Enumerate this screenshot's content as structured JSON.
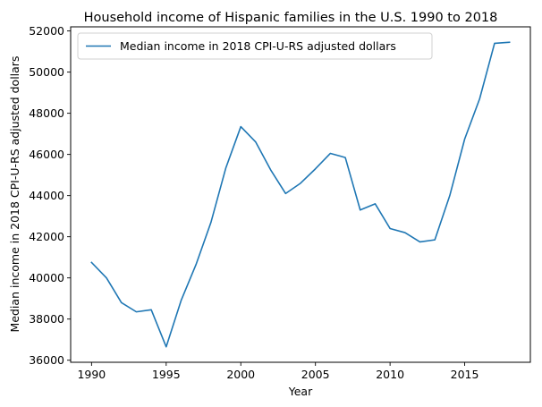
{
  "chart_data": {
    "type": "line",
    "title": "Household income of Hispanic families in the U.S. 1990 to 2018",
    "xlabel": "Year",
    "ylabel": "Median income in 2018 CPI-U-RS adjusted dollars",
    "xlim": [
      1988.6,
      2019.4
    ],
    "ylim": [
      35900,
      52200
    ],
    "xticks": [
      1990,
      1995,
      2000,
      2005,
      2010,
      2015
    ],
    "yticks": [
      36000,
      38000,
      40000,
      42000,
      44000,
      46000,
      48000,
      50000,
      52000
    ],
    "grid": false,
    "legend": {
      "position": "upper-left"
    },
    "series": [
      {
        "name": "Median income in 2018 CPI-U-RS adjusted dollars",
        "color": "#1f77b4",
        "x": [
          1990,
          1991,
          1992,
          1993,
          1994,
          1995,
          1996,
          1997,
          1998,
          1999,
          2000,
          2001,
          2002,
          2003,
          2004,
          2005,
          2006,
          2007,
          2008,
          2009,
          2010,
          2011,
          2012,
          2013,
          2014,
          2015,
          2016,
          2017,
          2018
        ],
        "y": [
          40750,
          40000,
          38800,
          38350,
          38450,
          36650,
          38900,
          40650,
          42700,
          45350,
          47350,
          46600,
          45250,
          44100,
          44600,
          45300,
          46050,
          45850,
          43300,
          43600,
          42400,
          42200,
          41750,
          41850,
          44000,
          46750,
          48700,
          51400,
          51450
        ]
      }
    ]
  }
}
